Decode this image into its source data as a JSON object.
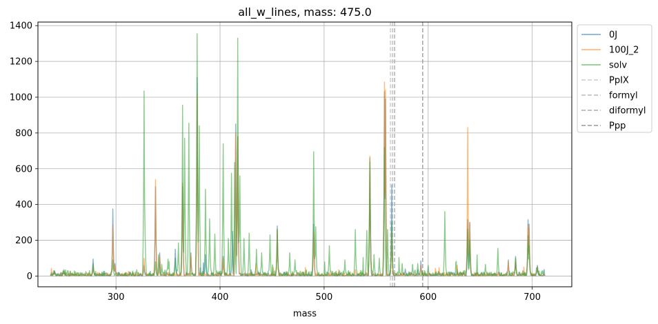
{
  "chart_data": {
    "type": "line",
    "title": "all_w_lines, mass: 475.0",
    "xlabel": "mass",
    "ylabel": "",
    "xlim": [
      225,
      738
    ],
    "ylim": [
      -60,
      1420
    ],
    "xticks": [
      300,
      400,
      500,
      600,
      700
    ],
    "yticks": [
      0,
      200,
      400,
      600,
      800,
      1000,
      1200,
      1400
    ],
    "grid": true,
    "legend_position": "outside-upper-right",
    "series": [
      {
        "name": "0J",
        "color": "#1f77b4",
        "peaks": [
          [
            241,
            30
          ],
          [
            250,
            35
          ],
          [
            278,
            95
          ],
          [
            297,
            375
          ],
          [
            299,
            70
          ],
          [
            327,
            60
          ],
          [
            338,
            500
          ],
          [
            342,
            130
          ],
          [
            357,
            150
          ],
          [
            364,
            500
          ],
          [
            372,
            130
          ],
          [
            378,
            1110
          ],
          [
            386,
            120
          ],
          [
            403,
            110
          ],
          [
            412,
            250
          ],
          [
            415,
            850
          ],
          [
            417,
            780
          ],
          [
            455,
            280
          ],
          [
            490,
            290
          ],
          [
            544,
            660
          ],
          [
            558,
            1030
          ],
          [
            559,
            990
          ],
          [
            565,
            510
          ],
          [
            578,
            40
          ],
          [
            593,
            85
          ],
          [
            638,
            315
          ],
          [
            640,
            300
          ],
          [
            677,
            90
          ],
          [
            684,
            110
          ],
          [
            696,
            315
          ],
          [
            697,
            290
          ],
          [
            705,
            60
          ]
        ]
      },
      {
        "name": "100J_2",
        "color": "#ff7f0e",
        "peaks": [
          [
            241,
            25
          ],
          [
            250,
            30
          ],
          [
            278,
            55
          ],
          [
            297,
            285
          ],
          [
            299,
            60
          ],
          [
            327,
            100
          ],
          [
            338,
            540
          ],
          [
            342,
            110
          ],
          [
            364,
            520
          ],
          [
            372,
            115
          ],
          [
            378,
            1020
          ],
          [
            403,
            100
          ],
          [
            415,
            800
          ],
          [
            417,
            780
          ],
          [
            455,
            260
          ],
          [
            490,
            250
          ],
          [
            544,
            670
          ],
          [
            558,
            1085
          ],
          [
            559,
            1040
          ],
          [
            565,
            250
          ],
          [
            593,
            60
          ],
          [
            638,
            830
          ],
          [
            640,
            300
          ],
          [
            677,
            80
          ],
          [
            684,
            90
          ],
          [
            696,
            290
          ],
          [
            697,
            270
          ],
          [
            705,
            55
          ]
        ]
      },
      {
        "name": "solv",
        "color": "#2ca02c",
        "peaks": [
          [
            241,
            25
          ],
          [
            250,
            30
          ],
          [
            278,
            70
          ],
          [
            297,
            90
          ],
          [
            320,
            35
          ],
          [
            327,
            1035
          ],
          [
            328,
            230
          ],
          [
            338,
            80
          ],
          [
            341,
            120
          ],
          [
            350,
            95
          ],
          [
            357,
            100
          ],
          [
            360,
            185
          ],
          [
            364,
            955
          ],
          [
            366,
            770
          ],
          [
            370,
            855
          ],
          [
            378,
            1355
          ],
          [
            380,
            840
          ],
          [
            386,
            485
          ],
          [
            390,
            320
          ],
          [
            395,
            235
          ],
          [
            403,
            740
          ],
          [
            408,
            210
          ],
          [
            411,
            575
          ],
          [
            414,
            635
          ],
          [
            417,
            1330
          ],
          [
            419,
            560
          ],
          [
            423,
            210
          ],
          [
            428,
            240
          ],
          [
            435,
            150
          ],
          [
            440,
            130
          ],
          [
            448,
            230
          ],
          [
            455,
            260
          ],
          [
            467,
            130
          ],
          [
            472,
            90
          ],
          [
            490,
            695
          ],
          [
            492,
            275
          ],
          [
            505,
            170
          ],
          [
            520,
            90
          ],
          [
            530,
            260
          ],
          [
            541,
            255
          ],
          [
            544,
            640
          ],
          [
            548,
            120
          ],
          [
            553,
            100
          ],
          [
            558,
            720
          ],
          [
            561,
            260
          ],
          [
            565,
            300
          ],
          [
            575,
            70
          ],
          [
            585,
            65
          ],
          [
            590,
            70
          ],
          [
            600,
            60
          ],
          [
            616,
            360
          ],
          [
            638,
            260
          ],
          [
            640,
            200
          ],
          [
            655,
            65
          ],
          [
            667,
            155
          ],
          [
            684,
            100
          ],
          [
            696,
            225
          ],
          [
            697,
            170
          ],
          [
            705,
            50
          ],
          [
            710,
            30
          ]
        ]
      }
    ],
    "vertical_lines": [
      {
        "name": "PpIX",
        "x": 563.7,
        "color": "#d3d3d3"
      },
      {
        "name": "formyl",
        "x": 565.7,
        "color": "#c4c4c4"
      },
      {
        "name": "diformyl",
        "x": 567.7,
        "color": "#b6b6b6"
      },
      {
        "name": "Ppp",
        "x": 594.7,
        "color": "#a8a8a8"
      }
    ]
  }
}
